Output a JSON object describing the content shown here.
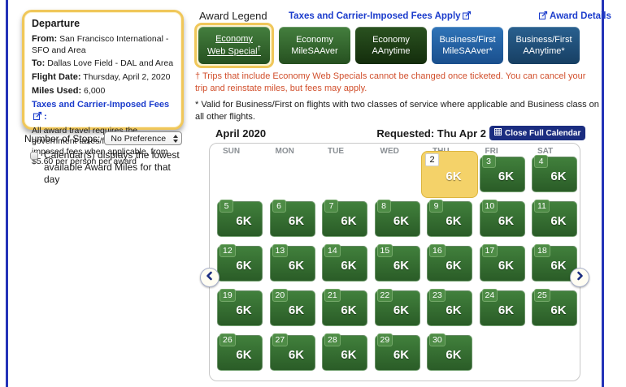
{
  "colors": {
    "page_border": "#2433b8",
    "link_blue": "#1b3ccc",
    "warning_red": "#d14f2c",
    "gold": "#f0c75a",
    "navy": "#1b2d80",
    "cell_green_top": "#41803c",
    "cell_green_bottom": "#2a5c27",
    "badge_green": "#4e8c46"
  },
  "icons": {
    "popup": "popup-window-icon",
    "calendar_grid": "calendar-grid-icon",
    "chevron_left": "chevron-left-icon",
    "chevron_right": "chevron-right-icon",
    "select_stepper": "up-down-stepper-icon",
    "radio": "radio-bullet-icon"
  },
  "sidebar": {
    "departure": {
      "title": "Departure",
      "fields": [
        {
          "label": "From:",
          "value": "San Francisco International - SFO and Area"
        },
        {
          "label": "To:",
          "value": "Dallas Love Field - DAL and Area"
        },
        {
          "label": "Flight Date:",
          "value": "Thursday, April 2, 2020"
        },
        {
          "label": "Miles Used:",
          "value": "6,000"
        }
      ],
      "fees_link": "Taxes and Carrier-Imposed Fees",
      "fees_link_suffix": ":",
      "fees_note": "All award travel requires the government taxes/fees, and carrier-imposed fees when applicable, from $5.60 per person per award"
    },
    "stops": {
      "label": "Number of Stops:",
      "value": "No Preference"
    },
    "calendar_note": "Calendar(s) displays the lowest available Award Miles for that day"
  },
  "legend": {
    "title": "Award Legend",
    "fees_apply_link": "Taxes and Carrier-Imposed Fees Apply",
    "award_details_link": "Award Details",
    "buttons": [
      {
        "line1": "Economy",
        "line2": "Web Special",
        "superscript": "†",
        "selected": true,
        "color_top": "#447f3e",
        "color_bottom": "#265020"
      },
      {
        "line1": "Economy",
        "line2": "MileSAAver",
        "selected": false,
        "color_top": "#447f3e",
        "color_bottom": "#265020"
      },
      {
        "line1": "Economy",
        "line2": "AAnytime",
        "selected": false,
        "color_top": "#2a5220",
        "color_bottom": "#142d0c"
      },
      {
        "line1": "Business/First",
        "line2": "MileSAAver*",
        "selected": false,
        "color_top": "#2f74b8",
        "color_bottom": "#1a4f8d"
      },
      {
        "line1": "Business/First",
        "line2": "AAnytime*",
        "selected": false,
        "color_top": "#29608f",
        "color_bottom": "#173f63"
      }
    ],
    "footnote_dagger": "† Trips that include Economy Web Specials cannot be changed once ticketed. You can cancel your trip and reinstate miles, but fees may apply.",
    "footnote_star": "* Valid for Business/First on flights with two classes of service where applicable and Business class on all other flights."
  },
  "calendar": {
    "month_title": "April 2020",
    "requested_label": "Requested: Thu Apr 2",
    "close_button_label": "Close Full Calendar",
    "day_headers": [
      "SUN",
      "MON",
      "TUE",
      "WED",
      "THU",
      "FRI",
      "SAT"
    ],
    "selected_day": "2",
    "weeks": [
      [
        null,
        null,
        null,
        null,
        {
          "day": "2",
          "miles": "6K",
          "selected": true
        },
        {
          "day": "3",
          "miles": "6K"
        },
        {
          "day": "4",
          "miles": "6K"
        }
      ],
      [
        {
          "day": "5",
          "miles": "6K"
        },
        {
          "day": "6",
          "miles": "6K"
        },
        {
          "day": "7",
          "miles": "6K"
        },
        {
          "day": "8",
          "miles": "6K"
        },
        {
          "day": "9",
          "miles": "6K"
        },
        {
          "day": "10",
          "miles": "6K"
        },
        {
          "day": "11",
          "miles": "6K"
        }
      ],
      [
        {
          "day": "12",
          "miles": "6K"
        },
        {
          "day": "13",
          "miles": "6K"
        },
        {
          "day": "14",
          "miles": "6K"
        },
        {
          "day": "15",
          "miles": "6K"
        },
        {
          "day": "16",
          "miles": "6K"
        },
        {
          "day": "17",
          "miles": "6K"
        },
        {
          "day": "18",
          "miles": "6K"
        }
      ],
      [
        {
          "day": "19",
          "miles": "6K"
        },
        {
          "day": "20",
          "miles": "6K"
        },
        {
          "day": "21",
          "miles": "6K"
        },
        {
          "day": "22",
          "miles": "6K"
        },
        {
          "day": "23",
          "miles": "6K"
        },
        {
          "day": "24",
          "miles": "6K"
        },
        {
          "day": "25",
          "miles": "6K"
        }
      ],
      [
        {
          "day": "26",
          "miles": "6K"
        },
        {
          "day": "27",
          "miles": "6K"
        },
        {
          "day": "28",
          "miles": "6K"
        },
        {
          "day": "29",
          "miles": "6K"
        },
        {
          "day": "30",
          "miles": "6K"
        },
        null,
        null
      ]
    ]
  }
}
